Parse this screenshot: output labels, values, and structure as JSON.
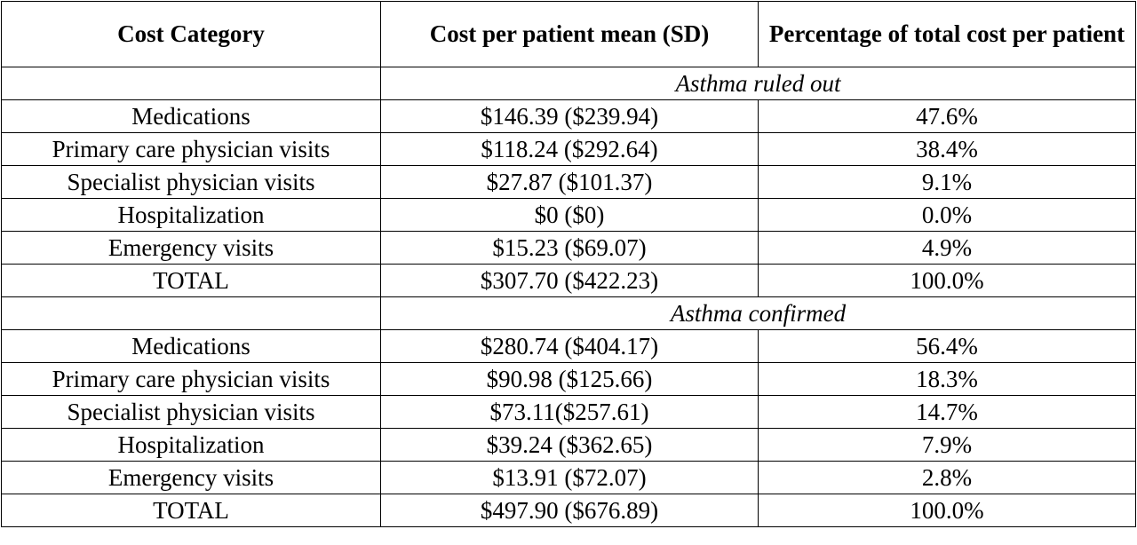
{
  "table": {
    "headers": {
      "category": "Cost Category",
      "cost": "Cost per patient mean (SD)",
      "percent": "Percentage of total cost per patient"
    },
    "sections": [
      {
        "label": "Asthma ruled out",
        "rows": [
          {
            "category": "Medications",
            "cost": "$146.39 ($239.94)",
            "percent": "47.6%"
          },
          {
            "category": "Primary care physician visits",
            "cost": "$118.24 ($292.64)",
            "percent": "38.4%"
          },
          {
            "category": "Specialist physician visits",
            "cost": "$27.87 ($101.37)",
            "percent": "9.1%"
          },
          {
            "category": "Hospitalization",
            "cost": "$0 ($0)",
            "percent": "0.0%"
          },
          {
            "category": "Emergency visits",
            "cost": "$15.23 ($69.07)",
            "percent": "4.9%"
          },
          {
            "category": "TOTAL",
            "cost": "$307.70 ($422.23)",
            "percent": "100.0%"
          }
        ]
      },
      {
        "label": "Asthma confirmed",
        "rows": [
          {
            "category": "Medications",
            "cost": "$280.74 ($404.17)",
            "percent": "56.4%"
          },
          {
            "category": "Primary care physician visits",
            "cost": "$90.98 ($125.66)",
            "percent": "18.3%"
          },
          {
            "category": "Specialist physician visits",
            "cost": "$73.11($257.61)",
            "percent": "14.7%"
          },
          {
            "category": "Hospitalization",
            "cost": "$39.24 ($362.65)",
            "percent": "7.9%"
          },
          {
            "category": "Emergency visits",
            "cost": "$13.91 ($72.07)",
            "percent": "2.8%"
          },
          {
            "category": "TOTAL",
            "cost": "$497.90 ($676.89)",
            "percent": "100.0%"
          }
        ]
      }
    ]
  }
}
